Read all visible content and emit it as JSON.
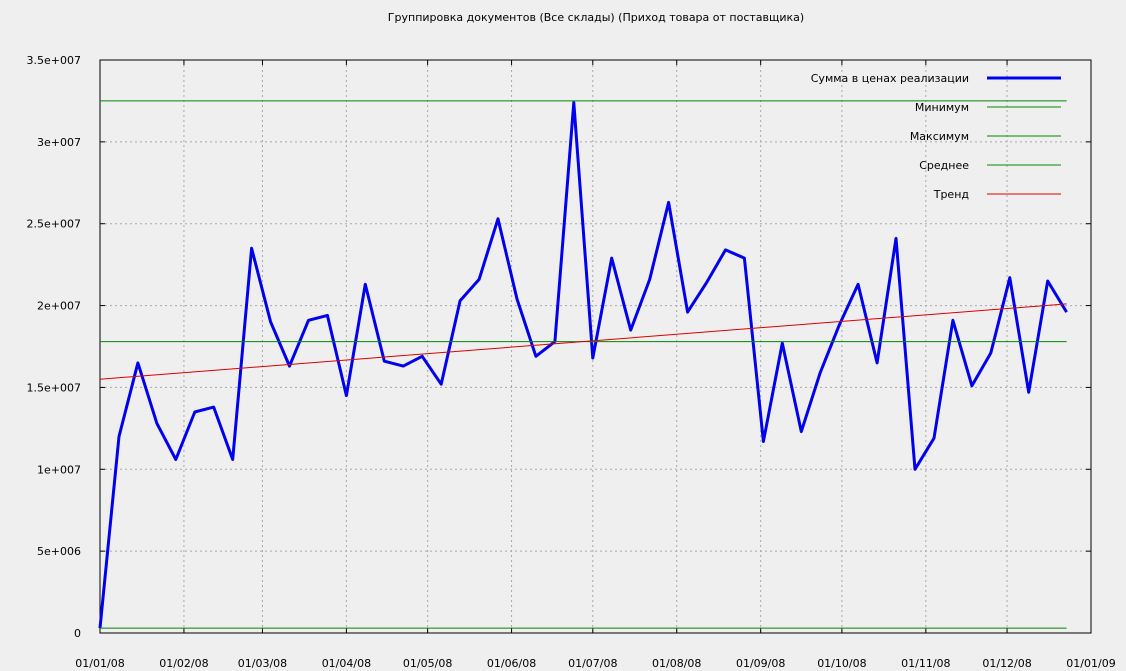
{
  "chart_data": {
    "type": "line",
    "title": "Группировка документов (Все склады) (Приход товара от поставщика)",
    "xlabel": "",
    "ylabel": "",
    "x_ticks": [
      "01/01/08",
      "01/02/08",
      "01/03/08",
      "01/04/08",
      "01/05/08",
      "01/06/08",
      "01/07/08",
      "01/08/08",
      "01/09/08",
      "01/10/08",
      "01/11/08",
      "01/12/08",
      "01/01/09"
    ],
    "y_ticks": [
      "0",
      "5e+006",
      "1e+007",
      "1.5e+007",
      "2e+007",
      "2.5e+007",
      "3e+007",
      "3.5e+007"
    ],
    "xlim": [
      "2008-01-01",
      "2009-01-01"
    ],
    "ylim": [
      0,
      35000000
    ],
    "grid": true,
    "legend_position": "top-right",
    "series": [
      {
        "name": "Сумма в ценах реализации",
        "color": "#0000ee",
        "style": "solid-thick",
        "x": [
          "2008-01-01",
          "2008-01-08",
          "2008-01-15",
          "2008-01-22",
          "2008-01-29",
          "2008-02-05",
          "2008-02-12",
          "2008-02-19",
          "2008-02-26",
          "2008-03-04",
          "2008-03-11",
          "2008-03-18",
          "2008-03-25",
          "2008-04-01",
          "2008-04-08",
          "2008-04-15",
          "2008-04-22",
          "2008-04-29",
          "2008-05-06",
          "2008-05-13",
          "2008-05-20",
          "2008-05-27",
          "2008-06-03",
          "2008-06-10",
          "2008-06-17",
          "2008-06-24",
          "2008-07-01",
          "2008-07-08",
          "2008-07-15",
          "2008-07-22",
          "2008-07-29",
          "2008-08-05",
          "2008-08-12",
          "2008-08-19",
          "2008-08-26",
          "2008-09-02",
          "2008-09-09",
          "2008-09-16",
          "2008-09-23",
          "2008-09-30",
          "2008-10-07",
          "2008-10-14",
          "2008-10-21",
          "2008-10-28",
          "2008-11-04",
          "2008-11-11",
          "2008-11-18",
          "2008-11-25",
          "2008-12-02",
          "2008-12-09",
          "2008-12-16",
          "2008-12-23"
        ],
        "values": [
          300000,
          12000000,
          16500000,
          12800000,
          10600000,
          13500000,
          13800000,
          10600000,
          23500000,
          19000000,
          16300000,
          19100000,
          19400000,
          14500000,
          21300000,
          16600000,
          16300000,
          16900000,
          15200000,
          20300000,
          21600000,
          25300000,
          20400000,
          16900000,
          17800000,
          32400000,
          16800000,
          22900000,
          18500000,
          21600000,
          26300000,
          19600000,
          21400000,
          23400000,
          22900000,
          11700000,
          17700000,
          12300000,
          15900000,
          18800000,
          21300000,
          16500000,
          24100000,
          10000000,
          11900000,
          19100000,
          15100000,
          17100000,
          21700000,
          14700000,
          21500000,
          19600000
        ]
      },
      {
        "name": "Минимум",
        "color": "#008800",
        "style": "hline",
        "values": [
          300000
        ]
      },
      {
        "name": "Максимум",
        "color": "#008800",
        "style": "hline",
        "values": [
          32500000
        ]
      },
      {
        "name": "Среднее",
        "color": "#008800",
        "style": "hline",
        "values": [
          17800000
        ]
      },
      {
        "name": "Тренд",
        "color": "#dd0000",
        "style": "line",
        "x": [
          "2008-01-01",
          "2008-12-23"
        ],
        "values": [
          15500000,
          20100000
        ]
      }
    ]
  }
}
